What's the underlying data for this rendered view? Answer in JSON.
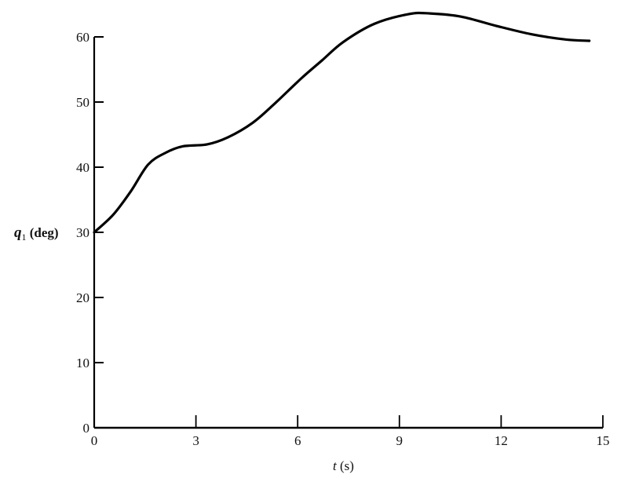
{
  "chart_data": {
    "type": "line",
    "title": "",
    "xlabel": {
      "symbol": "t",
      "unit": " (s)"
    },
    "ylabel": {
      "symbol": "q",
      "subscript": "1",
      "unit": " (deg)"
    },
    "xlim": [
      0,
      15
    ],
    "ylim": [
      0,
      60
    ],
    "xticks": [
      0,
      3,
      6,
      9,
      12,
      15
    ],
    "yticks": [
      0,
      10,
      20,
      30,
      40,
      50,
      60
    ],
    "grid": false,
    "line_color": "#000000",
    "series": [
      {
        "x": [
          0,
          0.56,
          1.08,
          1.59,
          2.1,
          2.61,
          3.33,
          3.95,
          4.67,
          5.29,
          6.1,
          6.72,
          7.34,
          8.26,
          9.28,
          9.9,
          10.83,
          11.85,
          12.9,
          13.9,
          14.6
        ],
        "y": [
          30.0,
          32.7,
          36.3,
          40.4,
          42.2,
          43.2,
          43.5,
          44.6,
          46.8,
          49.6,
          53.6,
          56.4,
          59.2,
          62.0,
          63.5,
          63.6,
          63.1,
          61.7,
          60.4,
          59.6,
          59.4
        ]
      }
    ]
  }
}
